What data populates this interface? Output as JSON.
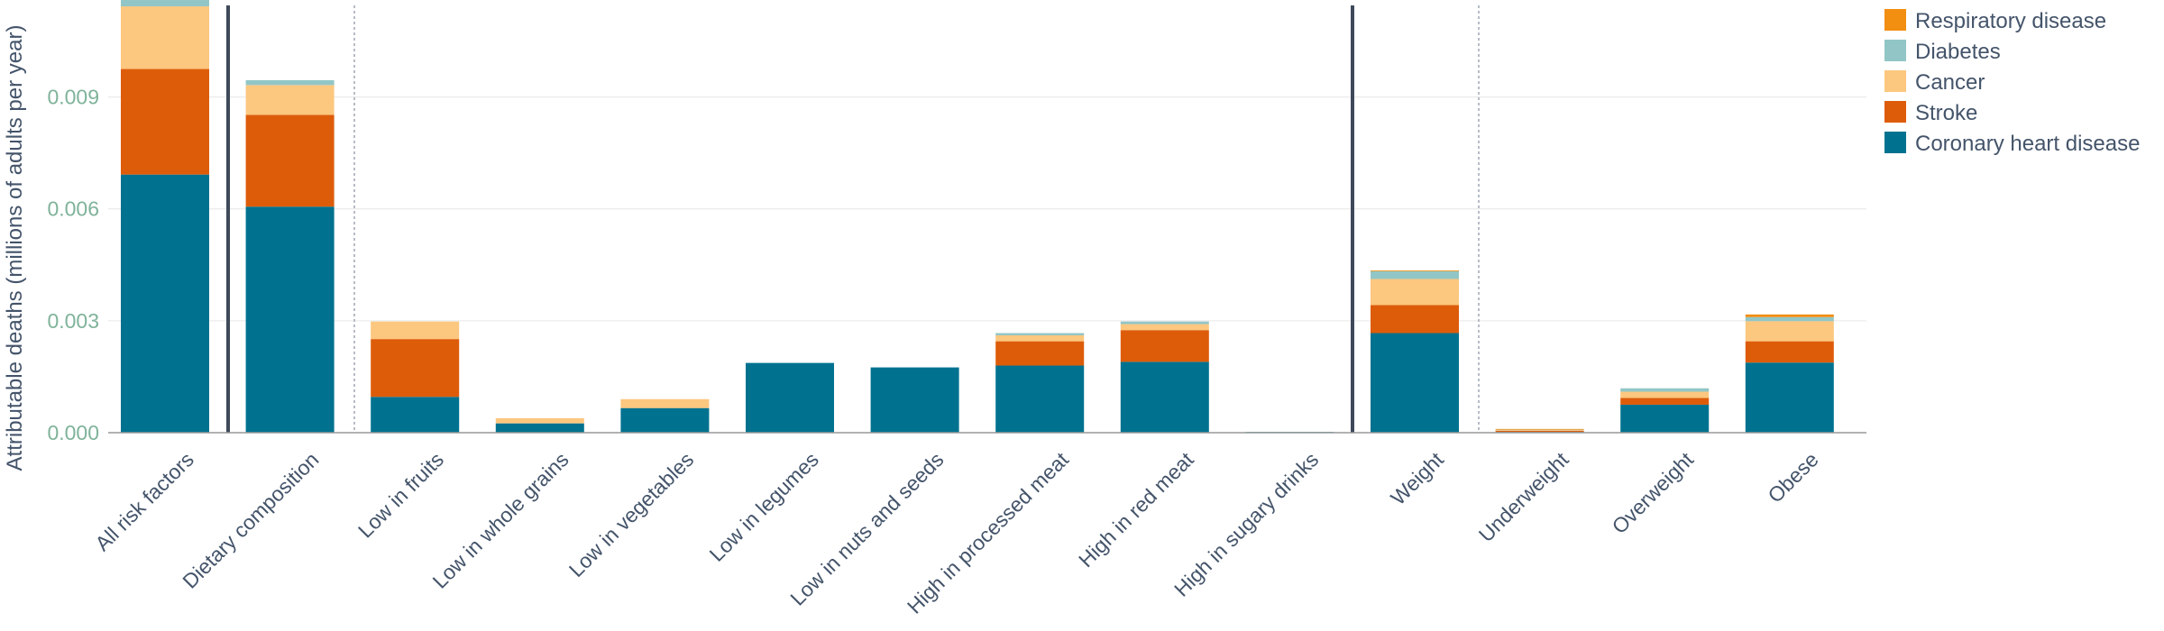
{
  "chart_data": {
    "type": "bar",
    "stacked": true,
    "ylabel": "Attributable deaths (millions of adults per year)",
    "xlabel": "",
    "ylim": [
      0,
      0.0116
    ],
    "yticks": [
      "0.000",
      "0.003",
      "0.006",
      "0.009"
    ],
    "ytick_values": [
      0,
      0.003,
      0.006,
      0.009
    ],
    "grid": true,
    "legend_position": "right",
    "categories": [
      "All risk factors",
      "Dietary composition",
      "Low in fruits",
      "Low in whole grains",
      "Low in vegetables",
      "Low in legumes",
      "Low in nuts and seeds",
      "High in processed meat",
      "High in red meat",
      "High in sugary drinks",
      "Weight",
      "Underweight",
      "Overweight",
      "Obese"
    ],
    "separators": {
      "solid_after": [
        1,
        9
      ],
      "dotted_after": [
        1,
        10
      ]
    },
    "series": [
      {
        "name": "Coronary heart disease",
        "color": "#00728f",
        "values": [
          0.00692,
          0.00606,
          0.00096,
          0.00025,
          0.00066,
          0.00187,
          0.00175,
          0.0018,
          0.0019,
          2e-05,
          0.00267,
          2e-05,
          0.00075,
          0.00188
        ]
      },
      {
        "name": "Stroke",
        "color": "#dd5c0a",
        "values": [
          0.00283,
          0.00246,
          0.00155,
          0.0,
          0.0,
          0.0,
          0.0,
          0.00065,
          0.00085,
          0.0,
          0.00075,
          3e-05,
          0.00018,
          0.00057
        ]
      },
      {
        "name": "Cancer",
        "color": "#fcc77f",
        "values": [
          0.00168,
          0.0008,
          0.00047,
          0.00014,
          0.00024,
          0.0,
          0.0,
          0.00016,
          0.00016,
          0.0,
          0.0007,
          2e-05,
          0.00017,
          0.00054
        ]
      },
      {
        "name": "Diabetes",
        "color": "#92c6c6",
        "values": [
          0.00024,
          0.00013,
          0.0,
          0.0,
          0.0,
          0.0,
          0.0,
          6e-05,
          7e-05,
          0.0,
          0.00021,
          1e-05,
          9e-05,
          0.00011
        ]
      },
      {
        "name": "Respiratory disease",
        "color": "#f28e10",
        "values": [
          0.0,
          0.0,
          0.0,
          0.0,
          0.0,
          0.0,
          0.0,
          0.0,
          0.0,
          0.0,
          2e-05,
          2e-05,
          0.0,
          7e-05
        ]
      }
    ],
    "legend_order": [
      "Respiratory disease",
      "Diabetes",
      "Cancer",
      "Stroke",
      "Coronary heart disease"
    ]
  }
}
